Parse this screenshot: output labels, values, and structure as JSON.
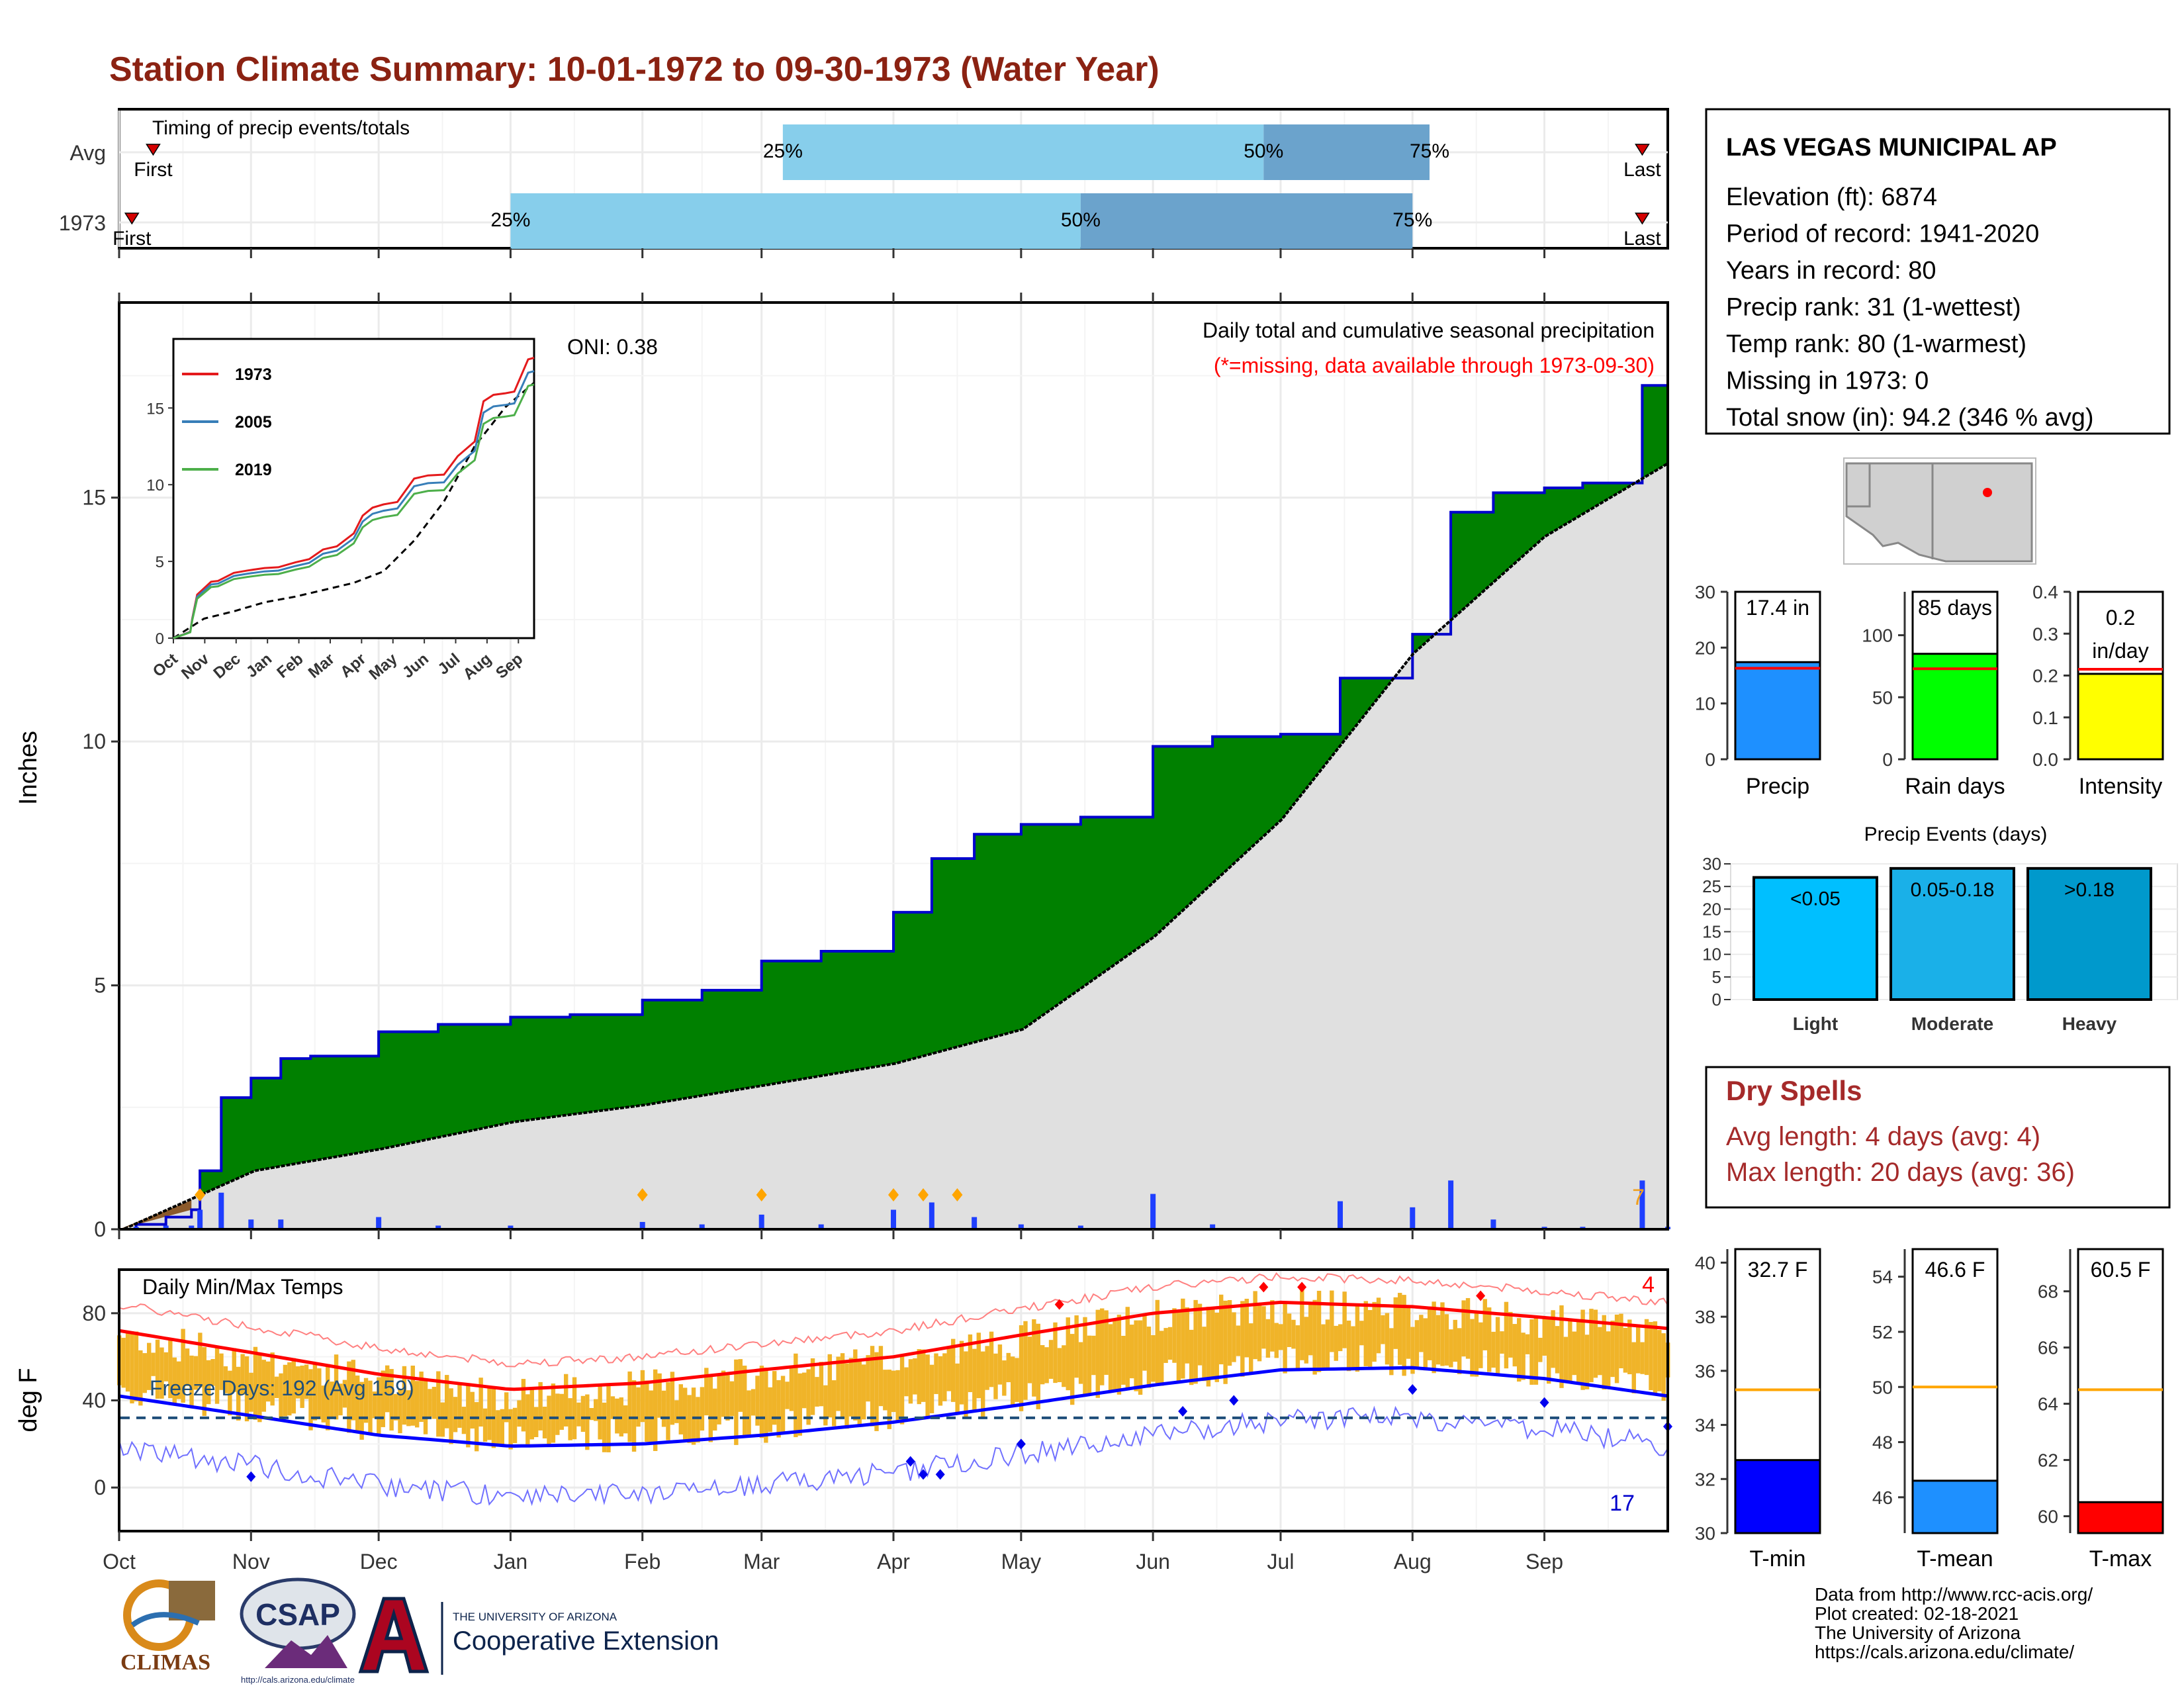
{
  "page": {
    "title": "Station Climate Summary: 10-01-1972 to 09-30-1973 (Water Year)"
  },
  "timing": {
    "label": "Timing of precip events/totals",
    "rows": [
      {
        "name": "Avg",
        "p25": "2023-03-06",
        "p50": "2023-06-27",
        "p75": "2023-08-05",
        "first_label": "First",
        "last_label": "Last",
        "first": "2022-10-09",
        "last": "2023-09-24"
      },
      {
        "name": "1973",
        "p25": "2023-01-01",
        "p50": "2023-05-15",
        "p75": "2023-08-01",
        "first_label": "First",
        "last_label": "Last",
        "first": "2022-10-04",
        "last": "2023-09-24"
      }
    ],
    "pct_labels": [
      "25%",
      "50%",
      "75%"
    ]
  },
  "precip": {
    "oni": "ONI: 0.38",
    "caption": "Daily total and cumulative seasonal precipitation",
    "missing_note": "(*=missing, data available through 1973-09-30)",
    "count_label": "7",
    "ylabel": "Inches"
  },
  "inset": {
    "x_ticks": [
      "Oct",
      "Nov",
      "Dec",
      "Jan",
      "Feb",
      "Mar",
      "Apr",
      "May",
      "Jun",
      "Jul",
      "Aug",
      "Sep"
    ],
    "y_ticks": [
      "0",
      "5",
      "10",
      "15"
    ],
    "legend": [
      "1973",
      "2005",
      "2019"
    ]
  },
  "temps": {
    "label": "Daily Min/Max Temps",
    "freeze": "Freeze Days: 192 (Avg 159)",
    "hot_count": "4",
    "cold_count": "17",
    "ylabel": "deg F"
  },
  "months": [
    "Oct",
    "Nov",
    "Dec",
    "Jan",
    "Feb",
    "Mar",
    "Apr",
    "May",
    "Jun",
    "Jul",
    "Aug",
    "Sep"
  ],
  "station": {
    "name": "LAS VEGAS MUNICIPAL AP",
    "lines": [
      "Elevation (ft): 6874",
      "Period of record: 1941-2020",
      "Years in record: 80",
      "Precip rank: 31 (1-wettest)",
      "Temp rank: 80 (1-warmest)",
      "Missing in 1973: 0",
      "Total snow (in): 94.2 (346 % avg)"
    ]
  },
  "minibars": [
    {
      "label": "Precip",
      "value_text": "17.4 in",
      "value": 17.4,
      "avg": 16.3,
      "ymax": 30,
      "ticks": [
        "0",
        "10",
        "20",
        "30"
      ],
      "color": "#1e90ff"
    },
    {
      "label": "Rain days",
      "value_text": "85 days",
      "value": 85,
      "avg": 73,
      "ymax": 135,
      "ticks": [
        "0",
        "50",
        "100"
      ],
      "color": "#00ff00"
    },
    {
      "label": "Intensity",
      "value_text": "0.2 in/day",
      "value": 0.204,
      "avg": 0.215,
      "ymax": 0.4,
      "ticks": [
        "0.0",
        "0.1",
        "0.2",
        "0.3",
        "0.4"
      ],
      "color": "#ffff00"
    }
  ],
  "events": {
    "title": "Precip Events (days)",
    "y_ticks": [
      "0",
      "5",
      "10",
      "15",
      "20",
      "25",
      "30"
    ],
    "bars": [
      {
        "label": "Light",
        "tag": "<0.05",
        "value": 27,
        "color": "#00bfff"
      },
      {
        "label": "Moderate",
        "tag": "0.05-0.18",
        "value": 29,
        "color": "#1ab0e8"
      },
      {
        "label": "Heavy",
        "tag": ">0.18",
        "value": 29,
        "color": "#0099cc"
      }
    ]
  },
  "dry": {
    "title": "Dry Spells",
    "avg": "Avg length: 4 days (avg: 4)",
    "max": "Max length: 20 days (avg: 36)"
  },
  "tempbars": [
    {
      "label": "T-min",
      "value_text": "32.7 F",
      "value": 32.7,
      "avg": 35.3,
      "ymin": 30,
      "ymax": 40.5,
      "ticks": [
        "30",
        "32",
        "34",
        "36",
        "38",
        "40"
      ],
      "color": "#0000ff"
    },
    {
      "label": "T-mean",
      "value_text": "46.6 F",
      "value": 46.6,
      "avg": 50.0,
      "ymin": 44.7,
      "ymax": 55,
      "ticks": [
        "46",
        "48",
        "50",
        "52",
        "54"
      ],
      "color": "#1e90ff"
    },
    {
      "label": "T-max",
      "value_text": "60.5 F",
      "value": 60.5,
      "avg": 64.5,
      "ymin": 59.4,
      "ymax": 69.5,
      "ticks": [
        "60",
        "62",
        "64",
        "66",
        "68"
      ],
      "color": "#ff0000"
    }
  ],
  "footer": {
    "lines": [
      "Data from http://www.rcc-acis.org/",
      "Plot created: 02-18-2021",
      "The University of Arizona",
      "https://cals.arizona.edu/climate/"
    ],
    "logos": {
      "climas": "CLIMAS",
      "csap": "CSAP",
      "csap_url": "http://cals.arizona.edu/climate",
      "ua_small": "THE UNIVERSITY OF ARIZONA",
      "ua_big": "Cooperative Extension"
    }
  },
  "colors": {
    "title": "#8b2212",
    "green": "#008000",
    "blue_line": "#0000cd",
    "gray_area": "#e0e0e0",
    "light_blue": "#87ceeb",
    "mid_blue": "#6ba3cc",
    "orange_bar": "#f0b429",
    "red_line": "#ff0000"
  },
  "chart_data": [
    {
      "type": "area",
      "x_start": "1972-10-01",
      "x_end": "1973-09-30",
      "ylim": [
        0,
        19
      ],
      "series": [
        {
          "name": "1973",
          "x": [
            "1972-10-01",
            "1972-10-05",
            "1972-10-12",
            "1972-10-18",
            "1972-10-20",
            "1972-10-25",
            "1972-11-01",
            "1972-11-08",
            "1972-11-15",
            "1972-12-01",
            "1972-12-15",
            "1973-01-01",
            "1973-01-15",
            "1973-02-01",
            "1973-02-15",
            "1973-03-01",
            "1973-03-15",
            "1973-04-01",
            "1973-04-10",
            "1973-04-20",
            "1973-05-01",
            "1973-05-15",
            "1973-06-01",
            "1973-06-15",
            "1973-07-01",
            "1973-07-15",
            "1973-08-01",
            "1973-08-10",
            "1973-08-20",
            "1973-09-01",
            "1973-09-10",
            "1973-09-24",
            "1973-09-30"
          ],
          "y": [
            0.0,
            0.1,
            0.25,
            0.4,
            1.2,
            2.7,
            3.1,
            3.5,
            3.55,
            4.05,
            4.2,
            4.35,
            4.4,
            4.7,
            4.9,
            5.5,
            5.7,
            6.5,
            7.6,
            8.1,
            8.3,
            8.45,
            9.9,
            10.1,
            10.15,
            11.3,
            12.2,
            14.7,
            15.1,
            15.2,
            15.3,
            17.3,
            17.4
          ]
        },
        {
          "name": "Avg",
          "x": [
            "1972-10-01",
            "1972-11-01",
            "1972-12-01",
            "1973-01-01",
            "1973-02-01",
            "1973-03-01",
            "1973-04-01",
            "1973-05-01",
            "1973-06-01",
            "1973-07-01",
            "1973-08-01",
            "1973-09-01",
            "1973-09-30"
          ],
          "y": [
            0.0,
            1.2,
            1.65,
            2.2,
            2.55,
            2.95,
            3.4,
            4.1,
            6.0,
            8.4,
            11.8,
            14.2,
            15.7
          ]
        }
      ]
    },
    {
      "type": "line",
      "x_start": "1972-10-01",
      "x_end": "1973-09-30",
      "ylim": [
        -20,
        100
      ],
      "series": [
        {
          "name": "Avg max",
          "x": [
            "1972-10-01",
            "1972-11-01",
            "1972-12-01",
            "1973-01-01",
            "1973-02-01",
            "1973-03-01",
            "1973-04-01",
            "1973-05-01",
            "1973-06-01",
            "1973-07-01",
            "1973-08-01",
            "1973-09-01",
            "1973-09-30"
          ],
          "y": [
            72,
            62,
            52,
            45,
            48,
            54,
            60,
            70,
            80,
            85,
            83,
            78,
            73
          ]
        },
        {
          "name": "Avg min",
          "x": [
            "1972-10-01",
            "1972-11-01",
            "1972-12-01",
            "1973-01-01",
            "1973-02-01",
            "1973-03-01",
            "1973-04-01",
            "1973-05-01",
            "1973-06-01",
            "1973-07-01",
            "1973-08-01",
            "1973-09-01",
            "1973-09-30"
          ],
          "y": [
            42,
            33,
            24,
            19,
            20,
            24,
            30,
            38,
            47,
            54,
            55,
            50,
            42
          ]
        }
      ]
    }
  ]
}
